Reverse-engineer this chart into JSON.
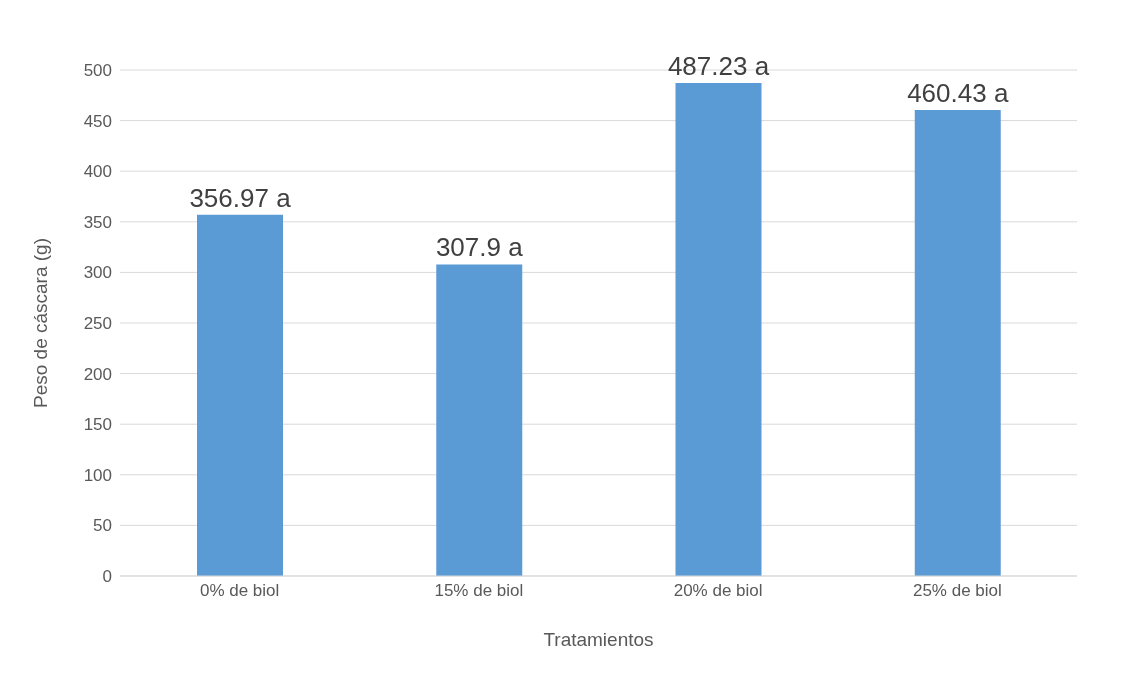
{
  "chart_data": {
    "type": "bar",
    "xlabel": "Tratamientos",
    "ylabel": "Peso de cáscara (g)",
    "categories": [
      "0% de biol",
      "15% de biol",
      "20% de biol",
      "25% de biol"
    ],
    "values": [
      356.97,
      307.9,
      487.23,
      460.43
    ],
    "value_labels": [
      "356.97 a",
      "307.9 a",
      "487.23 a",
      "460.43 a"
    ],
    "color": "#5b9bd5",
    "ylim": [
      0,
      500
    ],
    "yticks": [
      0,
      50,
      100,
      150,
      200,
      250,
      300,
      350,
      400,
      450,
      500
    ],
    "grid": "y"
  }
}
